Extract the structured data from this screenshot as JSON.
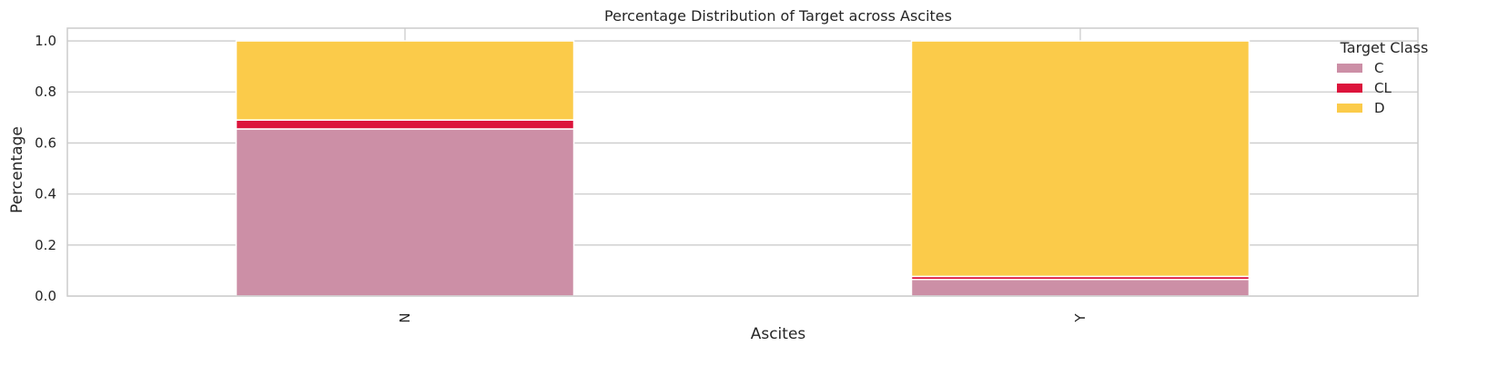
{
  "chart_data": {
    "type": "bar",
    "stacked": true,
    "title": "Percentage Distribution of Target across Ascites",
    "xlabel": "Ascites",
    "ylabel": "Percentage",
    "categories": [
      "N",
      "Y"
    ],
    "ylim": [
      0,
      1.05
    ],
    "yticks": [
      0.0,
      0.2,
      0.4,
      0.6,
      0.8,
      1.0
    ],
    "ytick_labels": [
      "0.0",
      "0.2",
      "0.4",
      "0.6",
      "0.8",
      "1.0"
    ],
    "grid": true,
    "legend": {
      "title": "Target Class",
      "placement": "top-right"
    },
    "series": [
      {
        "name": "C",
        "color": "#CC8FA6",
        "values": [
          0.655,
          0.065
        ]
      },
      {
        "name": "CL",
        "color": "#DC143C",
        "values": [
          0.035,
          0.012
        ]
      },
      {
        "name": "D",
        "color": "#FBCB4A",
        "values": [
          0.31,
          0.923
        ]
      }
    ]
  }
}
